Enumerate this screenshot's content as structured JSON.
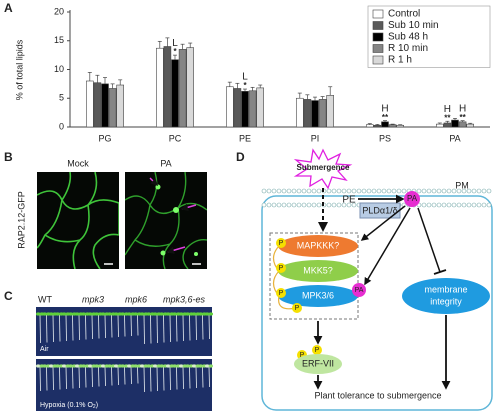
{
  "chart_data": {
    "type": "bar",
    "panel_label": "A",
    "ylabel": "% of total lipids",
    "categories": [
      "PG",
      "PC",
      "PE",
      "PI",
      "PS",
      "PA"
    ],
    "ylim": [
      0,
      20
    ],
    "yticks": [
      0,
      5,
      10,
      15,
      20
    ],
    "legend": "top-right",
    "series": [
      {
        "name": "Control",
        "color": "#ffffff",
        "values": [
          8,
          13.7,
          7,
          5,
          0.4,
          0.5
        ],
        "errors": [
          1.5,
          1.2,
          0.8,
          0.9,
          0.2,
          0.2
        ]
      },
      {
        "name": "Sub 10 min",
        "color": "#5a5a5a",
        "values": [
          7.7,
          14,
          6.7,
          4.8,
          0.3,
          0.7
        ],
        "errors": [
          1.3,
          1.5,
          0.9,
          0.8,
          0.15,
          0.3
        ],
        "letters": [
          null,
          null,
          null,
          null,
          null,
          "H"
        ],
        "stars": [
          null,
          null,
          null,
          null,
          null,
          "**"
        ]
      },
      {
        "name": "Sub 48 h",
        "color": "#000000",
        "values": [
          7.5,
          11.7,
          6.2,
          4.6,
          0.9,
          1.2
        ],
        "errors": [
          1.1,
          0.8,
          0.4,
          0.6,
          0.2,
          0.3
        ],
        "letters": [
          null,
          "L",
          "L",
          null,
          "H",
          null
        ],
        "stars": [
          null,
          "*",
          "*",
          null,
          "**",
          null
        ]
      },
      {
        "name": "R 10 min",
        "color": "#858585",
        "values": [
          6.7,
          13.5,
          6.3,
          4.8,
          0.4,
          0.9
        ],
        "errors": [
          0.8,
          0.9,
          0.6,
          0.5,
          0.1,
          0.2
        ],
        "letters": [
          null,
          null,
          null,
          null,
          null,
          "H"
        ],
        "stars": [
          null,
          null,
          null,
          null,
          null,
          "**"
        ]
      },
      {
        "name": "R 1 h",
        "color": "#d9d9d9",
        "values": [
          7.3,
          13.8,
          6.8,
          5.5,
          0.3,
          0.5
        ],
        "errors": [
          0.9,
          0.8,
          0.5,
          1.5,
          0.1,
          0.15
        ]
      }
    ]
  },
  "panel_b": {
    "label": "B",
    "columns": [
      "Mock",
      "PA"
    ],
    "row_label": "RAP2.12-GFP"
  },
  "panel_c": {
    "label": "C",
    "columns": [
      "WT",
      "mpk3",
      "mpk6",
      "mpk3,6-es"
    ],
    "air": "Air",
    "hypoxia": {
      "main": "Hypoxia (0.1% O",
      "sub": "2",
      "end": ")"
    }
  },
  "panel_d": {
    "label": "D",
    "stimulus": "Submergence",
    "membrane": "PM",
    "lipid": "PE",
    "enzyme": "PLDα1/δ",
    "product": [
      "PA",
      "PA"
    ],
    "kinases": [
      "MAPKKK?",
      "MKK5?",
      "MPK3/6"
    ],
    "phospho": [
      "P",
      "P",
      "P",
      "P",
      "P",
      "P"
    ],
    "factor": "ERF-VII",
    "integrity": [
      "membrane",
      "integrity"
    ],
    "outcome": "Plant tolerance to submergence"
  }
}
